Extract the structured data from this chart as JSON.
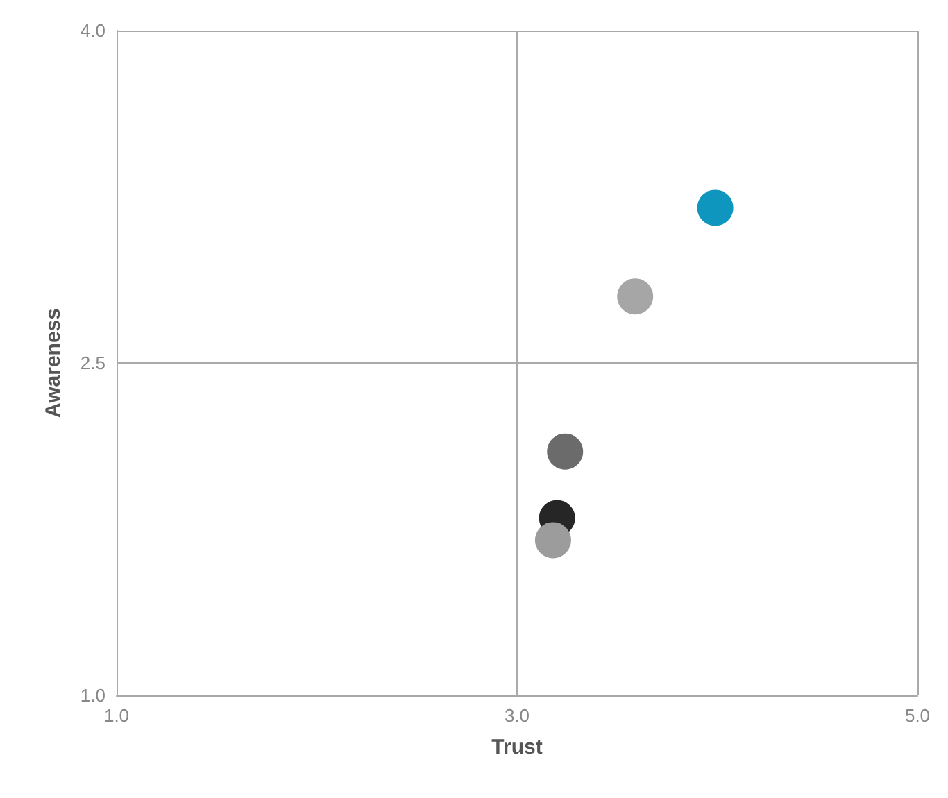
{
  "chart_data": {
    "type": "scatter",
    "xlabel": "Trust",
    "ylabel": "Awareness",
    "x": [
      3.99,
      3.59,
      3.24,
      3.2,
      3.18
    ],
    "values": [
      3.2,
      2.8,
      2.1,
      1.8,
      1.7
    ],
    "colors": [
      "#0f96be",
      "#a6a6a6",
      "#6b6b6b",
      "#262626",
      "#9c9c9c"
    ],
    "xlim": [
      1,
      5
    ],
    "xticks": [
      {
        "value": 1,
        "label": "1.0"
      },
      {
        "value": 3,
        "label": "3.0"
      },
      {
        "value": 5,
        "label": "5.0"
      }
    ],
    "ylim": [
      1,
      4
    ],
    "yticks": [
      {
        "value": 1,
        "label": "1.0"
      },
      {
        "value": 2.5,
        "label": "2.5"
      },
      {
        "value": 4,
        "label": "4.0"
      }
    ],
    "grid": true,
    "marker": "circle"
  }
}
